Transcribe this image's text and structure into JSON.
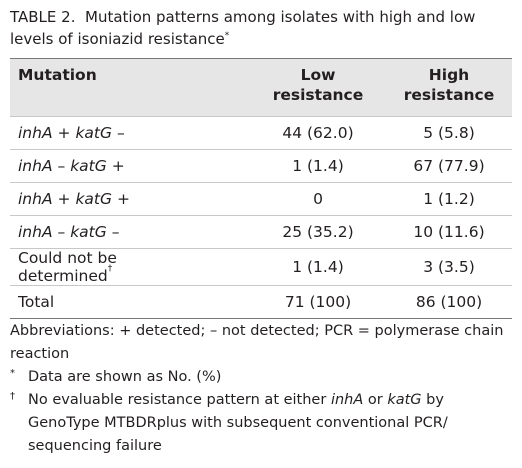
{
  "title": {
    "label": "TABLE 2.",
    "text": "Mutation patterns among isolates with high and low levels of isoniazid resistance",
    "mark": "*"
  },
  "table": {
    "columns": [
      "Mutation",
      "Low resistance",
      "High resistance"
    ],
    "rows": [
      {
        "gene_a": "inhA",
        "sign_a": "+",
        "gene_b": "katG",
        "sign_b": "–",
        "low": "44 (62.0)",
        "high": "5 (5.8)"
      },
      {
        "gene_a": "inhA",
        "sign_a": "–",
        "gene_b": "katG",
        "sign_b": "+",
        "low": "1 (1.4)",
        "high": "67 (77.9)"
      },
      {
        "gene_a": "inhA",
        "sign_a": "+",
        "gene_b": "katG",
        "sign_b": "+",
        "low": "0",
        "high": "1 (1.2)"
      },
      {
        "gene_a": "inhA",
        "sign_a": "–",
        "gene_b": "katG",
        "sign_b": "–",
        "low": "25 (35.2)",
        "high": "10 (11.6)"
      },
      {
        "label": "Could not be determined",
        "mark": "†",
        "low": "1 (1.4)",
        "high": "3 (3.5)"
      },
      {
        "label": "Total",
        "low": "71 (100)",
        "high": "86 (100)"
      }
    ]
  },
  "footnotes": {
    "abbreviations": "Abbreviations: + detected; – not detected; PCR = polymerase chain reaction",
    "notes": [
      {
        "mark": "*",
        "parts": [
          "Data are shown as No. (%)"
        ]
      },
      {
        "mark": "†",
        "parts": [
          "No evaluable resistance pattern at either ",
          "inhA",
          " or ",
          "katG",
          " by GenoType MTBDRplus with subsequent conventional PCR/ sequencing failure"
        ]
      }
    ]
  }
}
